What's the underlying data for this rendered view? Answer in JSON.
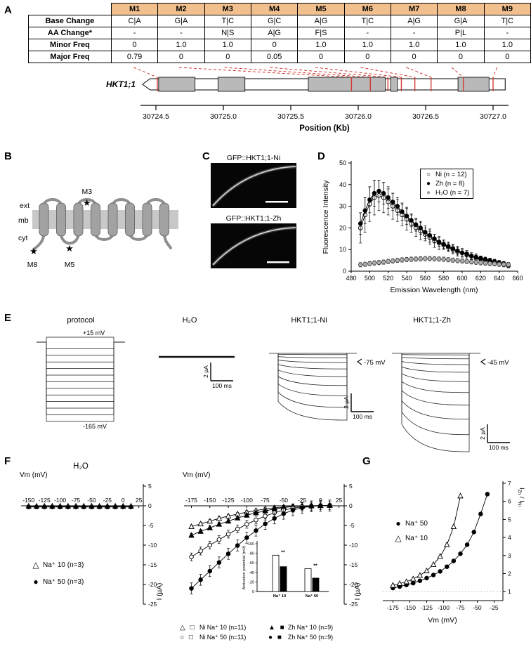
{
  "panel_labels": {
    "A": "A",
    "B": "B",
    "C": "C",
    "D": "D",
    "E": "E",
    "F": "F",
    "G": "G"
  },
  "colors": {
    "table_header": "#f2c08e",
    "mutation_red": "#cf3a32",
    "exon_gray": "#b9b9b9",
    "membrane_gray": "#c8c8c8",
    "helix_gray": "#a2a2a2",
    "loop_gray": "#8f8f8f"
  },
  "panelA": {
    "table": {
      "header": [
        "M1",
        "M2",
        "M3",
        "M4",
        "M5",
        "M6",
        "M7",
        "M8",
        "M9"
      ],
      "rows": [
        {
          "label": "Base Change",
          "values": [
            "C|A",
            "G|A",
            "T|C",
            "G|C",
            "A|G",
            "T|C",
            "A|G",
            "G|A",
            "T|C"
          ]
        },
        {
          "label": "AA Change*",
          "values": [
            "-",
            "-",
            "N|S",
            "A|G",
            "F|S",
            "-",
            "-",
            "P|L",
            "-"
          ]
        },
        {
          "label": "Minor Freq",
          "values": [
            "0",
            "1.0",
            "1.0",
            "0",
            "1.0",
            "1.0",
            "1.0",
            "1.0",
            "1.0"
          ]
        },
        {
          "label": "Major Freq",
          "values": [
            "0.79",
            "0",
            "0",
            "0.05",
            "0",
            "0",
            "0",
            "0",
            "0"
          ]
        }
      ]
    },
    "gene": {
      "name": "HKT1;1",
      "start_kb": 30724.4,
      "end_kb": 30727.09,
      "exons_kb": [
        [
          30724.52,
          30724.79
        ],
        [
          30724.96,
          30725.16
        ],
        [
          30725.63,
          30726.2
        ],
        [
          30726.24,
          30726.29
        ],
        [
          30726.74,
          30726.97
        ]
      ],
      "mutation_positions_kb": [
        30724.51,
        30725.95,
        30726.09,
        30726.22,
        30726.32,
        30726.42,
        30726.54,
        30726.78,
        30727.0
      ],
      "axis": {
        "ticks": [
          "30724.5",
          "30725.0",
          "30725.5",
          "30726.0",
          "30726.5",
          "30727.0"
        ],
        "label": "Position (Kb)"
      }
    }
  },
  "panelB": {
    "labels": {
      "ext": "ext",
      "mb": "mb",
      "cyt": "cyt"
    },
    "star_icon": "★",
    "mutations": [
      {
        "id": "M3"
      },
      {
        "id": "M8"
      },
      {
        "id": "M5"
      }
    ]
  },
  "panelC": {
    "images": [
      {
        "title": "GFP::HKT1;1-Ni"
      },
      {
        "title": "GFP::HKT1;1-Zh"
      }
    ]
  },
  "panelE": {
    "groups": [
      {
        "title": "protocol",
        "top_label": "+15 mV",
        "bottom_label": "-165 mV"
      },
      {
        "title": "H₂O",
        "scale_v": "2 µA",
        "scale_h": "100 ms"
      },
      {
        "title": "HKT1;1-Ni",
        "arrow_label": "-75 mV",
        "scale_v": "2 µA",
        "scale_h": "100 ms"
      },
      {
        "title": "HKT1;1-Zh",
        "arrow_label": "-45 mV",
        "scale_v": "2 µA",
        "scale_h": "100 ms"
      }
    ]
  },
  "charts": {
    "D": {
      "type": "line",
      "xlabel": "Emission Wavelength (nm)",
      "ylabel": "Fluorescence Intensity",
      "xlim": [
        480,
        660
      ],
      "ylim": [
        0,
        50
      ],
      "xticks": [
        480,
        500,
        520,
        540,
        560,
        580,
        600,
        620,
        640,
        660
      ],
      "yticks": [
        0,
        10,
        20,
        30,
        40,
        50
      ],
      "series": [
        {
          "name": "Ni (n = 12)",
          "marker": "circle-open",
          "x": [
            490,
            495,
            500,
            505,
            510,
            515,
            520,
            525,
            530,
            535,
            540,
            545,
            550,
            555,
            560,
            565,
            570,
            575,
            580,
            585,
            590,
            595,
            600,
            605,
            610,
            615,
            620,
            625,
            630,
            635,
            640,
            645,
            650
          ],
          "y": [
            20,
            26,
            31,
            34,
            35,
            34,
            32,
            30,
            28,
            26,
            24,
            22,
            20,
            18.5,
            17,
            15.5,
            14,
            13,
            12,
            11,
            10,
            9,
            8.5,
            7.5,
            7,
            6,
            5.5,
            5,
            4.5,
            4,
            3.5,
            3,
            2.5
          ],
          "err": [
            7,
            8,
            8,
            8,
            7,
            7,
            6,
            6,
            5,
            5,
            5,
            4,
            4,
            4,
            3,
            3,
            3,
            3,
            2,
            2,
            2,
            2,
            2,
            2,
            1.5,
            1.5,
            1.5,
            1,
            1,
            1,
            1,
            1,
            1
          ]
        },
        {
          "name": "Zh (n = 8)",
          "marker": "circle-filled",
          "x": [
            490,
            495,
            500,
            505,
            510,
            515,
            520,
            525,
            530,
            535,
            540,
            545,
            550,
            555,
            560,
            565,
            570,
            575,
            580,
            585,
            590,
            595,
            600,
            605,
            610,
            615,
            620,
            625,
            630,
            635,
            640,
            645,
            650
          ],
          "y": [
            22,
            28,
            33,
            36,
            37,
            36,
            34,
            32,
            30,
            27.5,
            25.5,
            23.5,
            21.5,
            20,
            18,
            16.5,
            15,
            13.5,
            12.5,
            11.5,
            10.5,
            9.5,
            8.5,
            8,
            7,
            6.5,
            6,
            5.5,
            5,
            4.5,
            4,
            3.5,
            3
          ],
          "err": [
            5,
            6,
            6,
            6,
            5,
            5,
            5,
            4,
            4,
            4,
            4,
            3,
            3,
            3,
            3,
            3,
            2,
            2,
            2,
            2,
            2,
            2,
            1.5,
            1.5,
            1.5,
            1.5,
            1,
            1,
            1,
            1,
            1,
            1,
            1
          ]
        },
        {
          "name": "H₂O (n = 7)",
          "marker": "circle-gray",
          "x": [
            490,
            495,
            500,
            505,
            510,
            515,
            520,
            525,
            530,
            535,
            540,
            545,
            550,
            555,
            560,
            565,
            570,
            575,
            580,
            585,
            590,
            595,
            600,
            605,
            610,
            615,
            620,
            625,
            630,
            635,
            640,
            645,
            650
          ],
          "y": [
            3,
            3.2,
            3.5,
            3.8,
            4,
            4.2,
            4.5,
            4.7,
            5,
            5.2,
            5.4,
            5.5,
            5.6,
            5.7,
            5.8,
            5.8,
            5.7,
            5.6,
            5.5,
            5.3,
            5.1,
            4.9,
            4.7,
            4.5,
            4.3,
            4.1,
            3.9,
            3.7,
            3.5,
            3.4,
            3.2,
            3.1,
            3
          ],
          "err": 1
        }
      ],
      "legend": [
        {
          "marker": "○",
          "label": "Ni (n = 12)"
        },
        {
          "marker": "●",
          "label": "Zh (n = 8)"
        },
        {
          "marker": "●",
          "color": "#9e9e9e",
          "label": "H₂O (n = 7)"
        }
      ]
    },
    "F_left": {
      "title": "H₂O",
      "xlabel": "Vm (mV)",
      "ylabel": "I (µA)",
      "xlim": [
        -162,
        32
      ],
      "ylim": [
        -25,
        5
      ],
      "xticks": [
        -150,
        -125,
        -100,
        -75,
        -50,
        -25,
        0,
        25
      ],
      "yticks": [
        5,
        0,
        -5,
        -10,
        -15,
        -20,
        -25
      ],
      "series": [
        {
          "name": "Na⁺ 10 (n=3)",
          "marker": "triangle-open",
          "x": [
            -150,
            -137.5,
            -125,
            -112.5,
            -100,
            -87.5,
            -75,
            -62.5,
            -50,
            -37.5,
            -25,
            -12.5,
            0,
            12.5
          ],
          "y": [
            -0.1,
            -0.1,
            -0.1,
            -0.1,
            -0.1,
            -0.1,
            -0.1,
            -0.1,
            -0.1,
            -0.1,
            -0.1,
            -0.1,
            -0.1,
            -0.1
          ]
        },
        {
          "name": "Na⁺ 50 (n=3)",
          "marker": "circle-filled",
          "x": [
            -150,
            -137.5,
            -125,
            -112.5,
            -100,
            -87.5,
            -75,
            -62.5,
            -50,
            -37.5,
            -25,
            -12.5,
            0,
            12.5
          ],
          "y": [
            -0.3,
            -0.3,
            -0.3,
            -0.3,
            -0.3,
            -0.3,
            -0.3,
            -0.3,
            -0.3,
            -0.3,
            -0.3,
            -0.3,
            -0.3,
            -0.3
          ]
        }
      ],
      "legend": [
        {
          "marker": "△",
          "label": "Na⁺ 10 (n=3)"
        },
        {
          "marker": "●",
          "label": "Na⁺ 50 (n=3)"
        }
      ]
    },
    "F_right": {
      "xlabel": "Vm (mV)",
      "ylabel": "I (µA)",
      "xlim": [
        -185,
        32
      ],
      "ylim": [
        -25,
        5
      ],
      "xticks": [
        -175,
        -150,
        -125,
        -100,
        -75,
        -50,
        -25,
        0,
        25
      ],
      "yticks": [
        5,
        0,
        -5,
        -10,
        -15,
        -20,
        -25
      ],
      "series": [
        {
          "name": "Ni Na⁺ 10 (n=11)",
          "marker": "triangle-open",
          "err": 0.4,
          "x": [
            -175,
            -162.5,
            -150,
            -137.5,
            -125,
            -112.5,
            -100,
            -87.5,
            -75,
            -62.5,
            -50,
            -37.5,
            -25,
            -12.5,
            0,
            12.5
          ],
          "y": [
            -5.3,
            -4.6,
            -3.9,
            -3.2,
            -2.6,
            -2.1,
            -1.6,
            -1.2,
            -0.8,
            -0.5,
            -0.3,
            -0.15,
            -0.05,
            0,
            0.05,
            0.1
          ]
        },
        {
          "name": "Zh Na⁺ 10 (n=9)",
          "marker": "triangle-filled",
          "err": 0.5,
          "x": [
            -175,
            -162.5,
            -150,
            -137.5,
            -125,
            -112.5,
            -100,
            -87.5,
            -75,
            -62.5,
            -50,
            -37.5,
            -25,
            -12.5,
            0,
            12.5
          ],
          "y": [
            -7.5,
            -6.5,
            -5.6,
            -4.7,
            -3.9,
            -3.1,
            -2.4,
            -1.8,
            -1.3,
            -0.8,
            -0.45,
            -0.2,
            -0.1,
            0,
            0.05,
            0.1
          ]
        },
        {
          "name": "Ni Na⁺ 50 (n=11)",
          "marker": "circle-open",
          "err": 1.0,
          "x": [
            -175,
            -162.5,
            -150,
            -137.5,
            -125,
            -112.5,
            -100,
            -87.5,
            -75,
            -62.5,
            -50,
            -37.5,
            -25,
            -12.5,
            0,
            12.5
          ],
          "y": [
            -13,
            -11.5,
            -10,
            -8.6,
            -7.2,
            -5.9,
            -4.7,
            -3.6,
            -2.6,
            -1.8,
            -1.1,
            -0.6,
            -0.25,
            -0.1,
            0,
            0.05
          ]
        },
        {
          "name": "Zh Na⁺ 50 (n=9)",
          "marker": "circle-filled",
          "err": 1.4,
          "x": [
            -175,
            -162.5,
            -150,
            -137.5,
            -125,
            -112.5,
            -100,
            -87.5,
            -75,
            -62.5,
            -50,
            -37.5,
            -25,
            -12.5,
            0,
            12.5
          ],
          "y": [
            -21,
            -18.8,
            -16.6,
            -14.4,
            -12.2,
            -10.1,
            -8.1,
            -6.3,
            -4.6,
            -3.2,
            -2,
            -1.1,
            -0.5,
            -0.15,
            0,
            0.05
          ]
        }
      ],
      "legend": [
        {
          "marker": "△ □",
          "label": "Ni Na⁺ 10 (n=11)"
        },
        {
          "marker": "▲ ■",
          "label": "Zh Na⁺ 10 (n=9)"
        },
        {
          "marker": "○ □",
          "label": "Ni Na⁺ 50 (n=11)"
        },
        {
          "marker": "● ■",
          "label": "Zh Na⁺ 50 (n=9)"
        }
      ]
    },
    "F_inset": {
      "type": "bar",
      "ylabel": "Activation potential (mV)",
      "yticks": [
        0,
        -20,
        -40,
        -60,
        -80,
        -100
      ],
      "groups": [
        "Na⁺ 10",
        "Na⁺ 50"
      ],
      "series": [
        {
          "name": "Ni",
          "fill": "#ffffff",
          "values": [
            -76,
            -48
          ]
        },
        {
          "name": "Zh",
          "fill": "#000000",
          "values": [
            -52,
            -28
          ]
        }
      ],
      "sig": [
        "**",
        "**"
      ]
    },
    "G": {
      "xlabel": "Vm (mV)",
      "ylabel_parts": [
        "I",
        "Zh",
        " / I",
        "Ni"
      ],
      "xlim": [
        -190,
        -12
      ],
      "ylim": [
        0.5,
        7
      ],
      "xticks": [
        -175,
        -150,
        -125,
        -100,
        -75,
        -50,
        -25
      ],
      "yticks": [
        1,
        2,
        3,
        4,
        5,
        6,
        7
      ],
      "refline": 1,
      "series": [
        {
          "name": "Na⁺ 50",
          "marker": "circle-filled",
          "x": [
            -175,
            -165,
            -155,
            -145,
            -135,
            -125,
            -115,
            -105,
            -95,
            -85,
            -75,
            -65,
            -55,
            -45,
            -35
          ],
          "y": [
            1.2,
            1.28,
            1.37,
            1.47,
            1.6,
            1.75,
            1.92,
            2.12,
            2.38,
            2.7,
            3.1,
            3.6,
            4.3,
            5.3,
            6.4
          ]
        },
        {
          "name": "Na⁺ 10",
          "marker": "triangle-open",
          "x": [
            -175,
            -165,
            -155,
            -145,
            -135,
            -125,
            -115,
            -105,
            -95,
            -85,
            -75
          ],
          "y": [
            1.35,
            1.45,
            1.55,
            1.7,
            1.9,
            2.15,
            2.5,
            2.95,
            3.6,
            4.6,
            6.3
          ]
        }
      ],
      "legend": [
        {
          "marker": "●",
          "label": "Na⁺ 50"
        },
        {
          "marker": "△",
          "label": "Na⁺ 10"
        }
      ]
    }
  }
}
